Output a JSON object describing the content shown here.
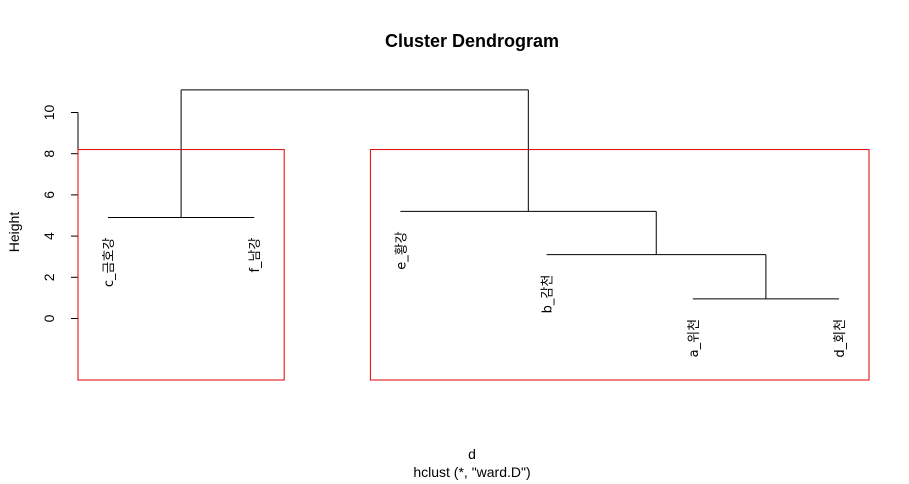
{
  "chart_data": {
    "type": "dendrogram",
    "title": "Cluster Dendrogram",
    "ylabel": "Height",
    "xlabel": "d",
    "sublabel": "hclust (*, \"ward.D\")",
    "ylim": [
      0,
      12
    ],
    "yticks": [
      0,
      2,
      4,
      6,
      8,
      10
    ],
    "leaves": [
      {
        "label": "c_금호강",
        "height": 4.9
      },
      {
        "label": "f_남강",
        "height": 4.9
      },
      {
        "label": "e_황강",
        "height": 5.2
      },
      {
        "label": "b_감천",
        "height": 3.1
      },
      {
        "label": "a_위천",
        "height": 0.95
      },
      {
        "label": "d_회천",
        "height": 0.95
      }
    ],
    "merges": [
      {
        "left": "leaf:4",
        "right": "leaf:5",
        "height": 0.95
      },
      {
        "left": "leaf:3",
        "right": "node:0",
        "height": 3.1
      },
      {
        "left": "leaf:2",
        "right": "node:1",
        "height": 5.2
      },
      {
        "left": "leaf:0",
        "right": "leaf:1",
        "height": 4.9
      },
      {
        "left": "node:3",
        "right": "node:2",
        "height": 11.1
      }
    ],
    "cluster_rects": [
      {
        "color": "#e00000",
        "members": [
          0,
          1
        ],
        "top": 8.2
      },
      {
        "color": "#e00000",
        "members": [
          2,
          3,
          4,
          5
        ],
        "top": 8.2
      }
    ]
  }
}
